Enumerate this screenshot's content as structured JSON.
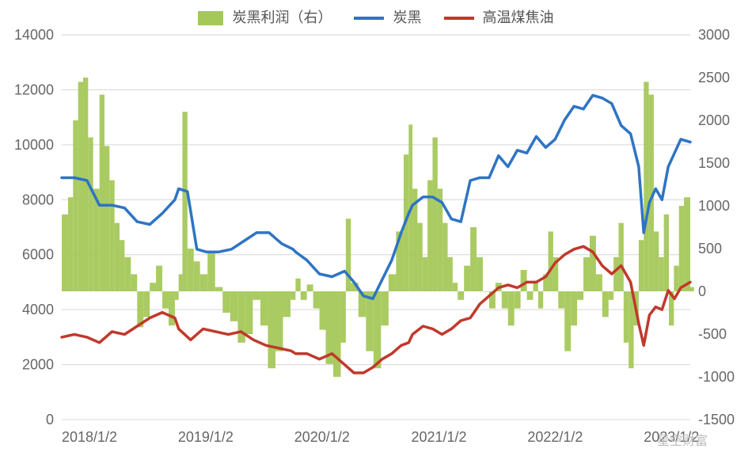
{
  "chart": {
    "type": "combo-area-line-dual-axis",
    "background_color": "#ffffff",
    "grid_color": "#d6d6d6",
    "axis_text_color": "#666666",
    "font_size_axis": 18,
    "font_size_legend": 18,
    "legend": {
      "items": [
        {
          "key": "profit",
          "label": "炭黑利润（右）",
          "swatch": "area",
          "color": "#a5c85a"
        },
        {
          "key": "cb",
          "label": "炭黑",
          "swatch": "line",
          "color": "#2e74c4"
        },
        {
          "key": "tar",
          "label": "高温煤焦油",
          "swatch": "line",
          "color": "#c0392b"
        }
      ]
    },
    "x": {
      "labels": [
        "2018/1/2",
        "2019/1/2",
        "2020/1/2",
        "2021/1/2",
        "2022/1/2",
        "2023/1/2"
      ],
      "tick_positions_ratio": [
        0.0,
        0.185,
        0.37,
        0.556,
        0.741,
        0.926
      ]
    },
    "y_left": {
      "min": 0,
      "max": 14000,
      "step": 2000
    },
    "y_right": {
      "min": -1500,
      "max": 3000,
      "step": 500
    },
    "series": {
      "profit_right": {
        "color": "#a5c85a",
        "opacity": 0.95,
        "type": "area",
        "axis": "right",
        "points": [
          [
            0.0,
            900
          ],
          [
            0.01,
            1100
          ],
          [
            0.018,
            2000
          ],
          [
            0.026,
            2450
          ],
          [
            0.034,
            2500
          ],
          [
            0.042,
            1800
          ],
          [
            0.05,
            1200
          ],
          [
            0.06,
            2300
          ],
          [
            0.068,
            1700
          ],
          [
            0.076,
            1300
          ],
          [
            0.084,
            800
          ],
          [
            0.092,
            600
          ],
          [
            0.1,
            400
          ],
          [
            0.11,
            200
          ],
          [
            0.12,
            -420
          ],
          [
            0.13,
            -300
          ],
          [
            0.14,
            100
          ],
          [
            0.15,
            300
          ],
          [
            0.16,
            -200
          ],
          [
            0.17,
            -400
          ],
          [
            0.18,
            -100
          ],
          [
            0.186,
            200
          ],
          [
            0.192,
            2100
          ],
          [
            0.2,
            500
          ],
          [
            0.21,
            350
          ],
          [
            0.22,
            200
          ],
          [
            0.232,
            450
          ],
          [
            0.244,
            50
          ],
          [
            0.256,
            -250
          ],
          [
            0.268,
            -350
          ],
          [
            0.28,
            -600
          ],
          [
            0.292,
            -500
          ],
          [
            0.304,
            -100
          ],
          [
            0.316,
            -400
          ],
          [
            0.328,
            -900
          ],
          [
            0.34,
            -700
          ],
          [
            0.352,
            -300
          ],
          [
            0.364,
            -100
          ],
          [
            0.372,
            150
          ],
          [
            0.38,
            -100
          ],
          [
            0.39,
            80
          ],
          [
            0.4,
            -200
          ],
          [
            0.41,
            -450
          ],
          [
            0.42,
            -850
          ],
          [
            0.432,
            -1000
          ],
          [
            0.444,
            -600
          ],
          [
            0.452,
            850
          ],
          [
            0.46,
            100
          ],
          [
            0.472,
            -300
          ],
          [
            0.484,
            -700
          ],
          [
            0.496,
            -900
          ],
          [
            0.508,
            -400
          ],
          [
            0.52,
            200
          ],
          [
            0.532,
            700
          ],
          [
            0.544,
            1600
          ],
          [
            0.552,
            1950
          ],
          [
            0.558,
            1200
          ],
          [
            0.566,
            800
          ],
          [
            0.574,
            400
          ],
          [
            0.582,
            1300
          ],
          [
            0.59,
            1800
          ],
          [
            0.598,
            1200
          ],
          [
            0.606,
            800
          ],
          [
            0.614,
            400
          ],
          [
            0.622,
            100
          ],
          [
            0.63,
            -100
          ],
          [
            0.64,
            300
          ],
          [
            0.65,
            750
          ],
          [
            0.66,
            400
          ],
          [
            0.67,
            0
          ],
          [
            0.68,
            -200
          ],
          [
            0.69,
            100
          ],
          [
            0.7,
            -200
          ],
          [
            0.71,
            -400
          ],
          [
            0.72,
            -200
          ],
          [
            0.73,
            250
          ],
          [
            0.74,
            -100
          ],
          [
            0.75,
            100
          ],
          [
            0.758,
            -200
          ],
          [
            0.766,
            200
          ],
          [
            0.774,
            700
          ],
          [
            0.782,
            400
          ],
          [
            0.79,
            -200
          ],
          [
            0.8,
            -700
          ],
          [
            0.81,
            -400
          ],
          [
            0.82,
            -100
          ],
          [
            0.83,
            400
          ],
          [
            0.84,
            650
          ],
          [
            0.85,
            200
          ],
          [
            0.86,
            -300
          ],
          [
            0.87,
            -100
          ],
          [
            0.878,
            400
          ],
          [
            0.886,
            800
          ],
          [
            0.894,
            -600
          ],
          [
            0.902,
            -900
          ],
          [
            0.91,
            -400
          ],
          [
            0.918,
            600
          ],
          [
            0.926,
            2450
          ],
          [
            0.934,
            2300
          ],
          [
            0.942,
            700
          ],
          [
            0.95,
            400
          ],
          [
            0.958,
            900
          ],
          [
            0.966,
            -400
          ],
          [
            0.974,
            300
          ],
          [
            0.982,
            1000
          ],
          [
            0.99,
            1100
          ],
          [
            1.0,
            50
          ]
        ]
      },
      "carbon_black_left": {
        "color": "#2e74c4",
        "width": 3.5,
        "type": "line",
        "axis": "left",
        "points": [
          [
            0.0,
            8800
          ],
          [
            0.02,
            8800
          ],
          [
            0.04,
            8700
          ],
          [
            0.06,
            7800
          ],
          [
            0.08,
            7800
          ],
          [
            0.1,
            7700
          ],
          [
            0.12,
            7200
          ],
          [
            0.14,
            7100
          ],
          [
            0.16,
            7500
          ],
          [
            0.18,
            8000
          ],
          [
            0.186,
            8400
          ],
          [
            0.2,
            8300
          ],
          [
            0.215,
            6200
          ],
          [
            0.23,
            6100
          ],
          [
            0.25,
            6100
          ],
          [
            0.27,
            6200
          ],
          [
            0.29,
            6500
          ],
          [
            0.31,
            6800
          ],
          [
            0.33,
            6800
          ],
          [
            0.35,
            6400
          ],
          [
            0.368,
            6200
          ],
          [
            0.372,
            6100
          ],
          [
            0.39,
            5800
          ],
          [
            0.41,
            5300
          ],
          [
            0.43,
            5200
          ],
          [
            0.45,
            5400
          ],
          [
            0.465,
            5000
          ],
          [
            0.48,
            4500
          ],
          [
            0.495,
            4400
          ],
          [
            0.51,
            5100
          ],
          [
            0.525,
            5800
          ],
          [
            0.54,
            6800
          ],
          [
            0.552,
            7500
          ],
          [
            0.558,
            7800
          ],
          [
            0.575,
            8100
          ],
          [
            0.59,
            8100
          ],
          [
            0.605,
            7900
          ],
          [
            0.62,
            7300
          ],
          [
            0.635,
            7200
          ],
          [
            0.65,
            8700
          ],
          [
            0.665,
            8800
          ],
          [
            0.68,
            8800
          ],
          [
            0.695,
            9600
          ],
          [
            0.71,
            9200
          ],
          [
            0.725,
            9800
          ],
          [
            0.74,
            9700
          ],
          [
            0.755,
            10300
          ],
          [
            0.77,
            9900
          ],
          [
            0.785,
            10200
          ],
          [
            0.8,
            10900
          ],
          [
            0.815,
            11400
          ],
          [
            0.83,
            11300
          ],
          [
            0.845,
            11800
          ],
          [
            0.86,
            11700
          ],
          [
            0.875,
            11500
          ],
          [
            0.89,
            10700
          ],
          [
            0.905,
            10400
          ],
          [
            0.918,
            9200
          ],
          [
            0.926,
            6800
          ],
          [
            0.935,
            7900
          ],
          [
            0.945,
            8400
          ],
          [
            0.955,
            8000
          ],
          [
            0.965,
            9200
          ],
          [
            0.975,
            9700
          ],
          [
            0.985,
            10200
          ],
          [
            1.0,
            10100
          ]
        ]
      },
      "coal_tar_left": {
        "color": "#c0392b",
        "width": 3.5,
        "type": "line",
        "axis": "left",
        "points": [
          [
            0.0,
            3000
          ],
          [
            0.02,
            3100
          ],
          [
            0.04,
            3000
          ],
          [
            0.06,
            2800
          ],
          [
            0.08,
            3200
          ],
          [
            0.1,
            3100
          ],
          [
            0.12,
            3400
          ],
          [
            0.14,
            3700
          ],
          [
            0.16,
            3900
          ],
          [
            0.18,
            3700
          ],
          [
            0.186,
            3300
          ],
          [
            0.205,
            2900
          ],
          [
            0.225,
            3300
          ],
          [
            0.245,
            3200
          ],
          [
            0.265,
            3100
          ],
          [
            0.285,
            3200
          ],
          [
            0.305,
            2900
          ],
          [
            0.325,
            2700
          ],
          [
            0.345,
            2600
          ],
          [
            0.365,
            2500
          ],
          [
            0.372,
            2400
          ],
          [
            0.39,
            2400
          ],
          [
            0.41,
            2200
          ],
          [
            0.43,
            2400
          ],
          [
            0.45,
            2000
          ],
          [
            0.465,
            1700
          ],
          [
            0.48,
            1700
          ],
          [
            0.495,
            1900
          ],
          [
            0.51,
            2200
          ],
          [
            0.525,
            2400
          ],
          [
            0.54,
            2700
          ],
          [
            0.552,
            2800
          ],
          [
            0.558,
            3100
          ],
          [
            0.575,
            3400
          ],
          [
            0.59,
            3300
          ],
          [
            0.605,
            3100
          ],
          [
            0.62,
            3300
          ],
          [
            0.635,
            3600
          ],
          [
            0.65,
            3700
          ],
          [
            0.665,
            4200
          ],
          [
            0.68,
            4500
          ],
          [
            0.695,
            4800
          ],
          [
            0.71,
            4900
          ],
          [
            0.725,
            4800
          ],
          [
            0.74,
            5000
          ],
          [
            0.755,
            5000
          ],
          [
            0.77,
            5200
          ],
          [
            0.785,
            5700
          ],
          [
            0.8,
            6000
          ],
          [
            0.815,
            6200
          ],
          [
            0.83,
            6300
          ],
          [
            0.845,
            6100
          ],
          [
            0.86,
            5600
          ],
          [
            0.875,
            5300
          ],
          [
            0.89,
            5600
          ],
          [
            0.905,
            5000
          ],
          [
            0.918,
            3500
          ],
          [
            0.926,
            2700
          ],
          [
            0.935,
            3800
          ],
          [
            0.945,
            4100
          ],
          [
            0.955,
            4000
          ],
          [
            0.965,
            4700
          ],
          [
            0.975,
            4400
          ],
          [
            0.985,
            4800
          ],
          [
            1.0,
            5000
          ]
        ]
      }
    },
    "watermark": "星空财富"
  }
}
